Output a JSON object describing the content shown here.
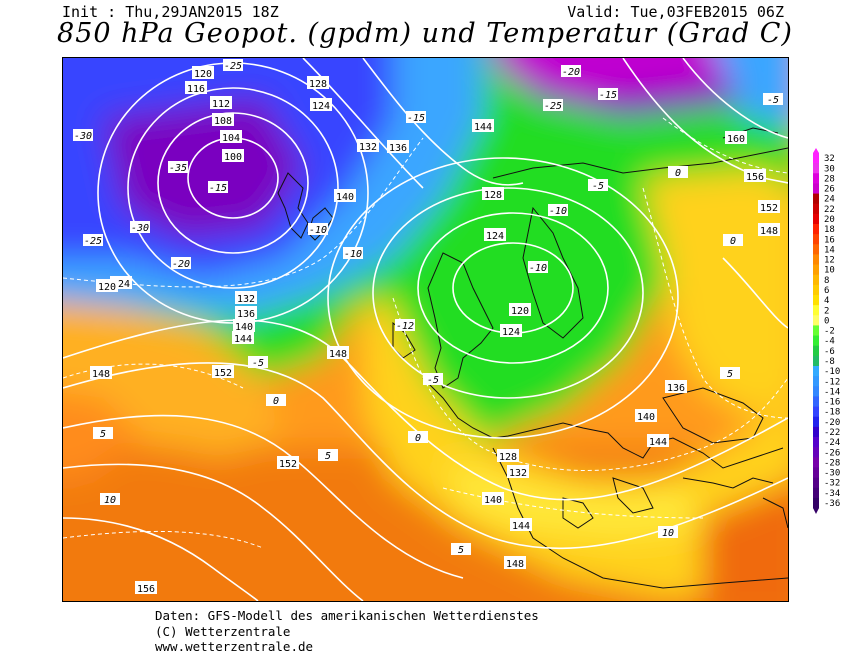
{
  "header": {
    "init": "Init : Thu,29JAN2015 18Z",
    "valid": "Valid: Tue,03FEB2015 06Z",
    "title": "850 hPa Geopot. (gpdm) und Temperatur (Grad C)"
  },
  "legend": {
    "labels": [
      "32",
      "30",
      "28",
      "26",
      "24",
      "22",
      "20",
      "18",
      "16",
      "14",
      "12",
      "10",
      "8",
      "6",
      "4",
      "2",
      "0",
      "-2",
      "-4",
      "-6",
      "-8",
      "-10",
      "-12",
      "-14",
      "-16",
      "-18",
      "-20",
      "-22",
      "-24",
      "-26",
      "-28",
      "-30",
      "-32",
      "-34",
      "-36"
    ],
    "colors": {
      "warmest": "#e600e6",
      "warm": "#ff8c1a",
      "mild": "#ffd700",
      "cool": "#22dd22",
      "cold": "#33bbff",
      "colder": "#3344ff",
      "coldest": "#7a00b3"
    }
  },
  "geopotential_labels": [
    {
      "text": "120"
    },
    {
      "text": "116"
    },
    {
      "text": "112"
    },
    {
      "text": "108"
    },
    {
      "text": "104"
    },
    {
      "text": "100"
    },
    {
      "text": "128"
    },
    {
      "text": "124"
    },
    {
      "text": "132"
    },
    {
      "text": "136"
    },
    {
      "text": "140"
    },
    {
      "text": "144"
    },
    {
      "text": "148"
    },
    {
      "text": "152"
    },
    {
      "text": "156"
    },
    {
      "text": "160"
    },
    {
      "text": "120"
    },
    {
      "text": "124"
    },
    {
      "text": "128"
    },
    {
      "text": "136"
    },
    {
      "text": "140"
    },
    {
      "text": "144"
    },
    {
      "text": "148"
    },
    {
      "text": "152"
    },
    {
      "text": "156"
    },
    {
      "text": "132"
    },
    {
      "text": "136"
    },
    {
      "text": "140"
    },
    {
      "text": "144"
    },
    {
      "text": "148"
    },
    {
      "text": "128"
    },
    {
      "text": "124"
    },
    {
      "text": "120"
    },
    {
      "text": "132"
    },
    {
      "text": "144"
    },
    {
      "text": "152"
    },
    {
      "text": "148"
    },
    {
      "text": "124"
    },
    {
      "text": "140"
    },
    {
      "text": "156"
    }
  ],
  "temperature_labels": [
    {
      "text": "-30"
    },
    {
      "text": "-25"
    },
    {
      "text": "-35"
    },
    {
      "text": "-30"
    },
    {
      "text": "-25"
    },
    {
      "text": "-20"
    },
    {
      "text": "-15"
    },
    {
      "text": "-10"
    },
    {
      "text": "-5"
    },
    {
      "text": "0"
    },
    {
      "text": "5"
    },
    {
      "text": "10"
    },
    {
      "text": "-15"
    },
    {
      "text": "-10"
    },
    {
      "text": "-5"
    },
    {
      "text": "0"
    },
    {
      "text": "5"
    },
    {
      "text": "-10"
    },
    {
      "text": "-12"
    },
    {
      "text": "-25"
    },
    {
      "text": "-20"
    },
    {
      "text": "-15"
    },
    {
      "text": "-10"
    },
    {
      "text": "-5"
    },
    {
      "text": "0"
    },
    {
      "text": "5"
    },
    {
      "text": "10"
    },
    {
      "text": "-5"
    },
    {
      "text": "0"
    },
    {
      "text": "5"
    }
  ],
  "footer": {
    "line1": "Daten: GFS-Modell des amerikanischen Wetterdienstes",
    "line2": "(C) Wetterzentrale",
    "line3": "www.wetterzentrale.de"
  }
}
